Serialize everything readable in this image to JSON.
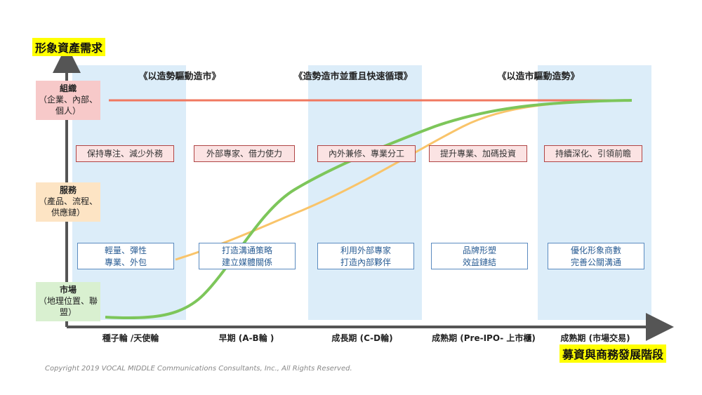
{
  "y_axis_title": "形象資產需求",
  "x_axis_title": "募資與商務發展階段",
  "phases": [
    "《以造勢驅動造市》",
    "《造勢造市並重且快速循環》",
    "《以造市驅動造勢》"
  ],
  "levels": {
    "org": {
      "title": "組織",
      "desc": "（企業、內部、個人）"
    },
    "service": {
      "title": "服務",
      "desc": "（產品、流程、供應鏈）"
    },
    "market": {
      "title": "市場",
      "desc": "（地理位置、聯盟）"
    }
  },
  "red_boxes": [
    "保持專注、減少外務",
    "外部專家、借力使力",
    "內外兼修、專業分工",
    "提升專業、加碼投資",
    "持續深化、引領前瞻"
  ],
  "blue_boxes": [
    {
      "line1": "輕量、彈性",
      "line2": "專業、外包"
    },
    {
      "line1": "打造溝通策略",
      "line2": "建立媒體關係"
    },
    {
      "line1": "利用外部專家",
      "line2": "打造內部夥伴"
    },
    {
      "line1": "品牌形塑",
      "line2": "效益鏈結"
    },
    {
      "line1": "優化形象商數",
      "line2": "完善公關溝通"
    }
  ],
  "stages": [
    "種子輪 /天使輪",
    "早期 (A-B輪 )",
    "成長期 (C-D輪)",
    "成熟期 (Pre-IPO- 上市櫃)",
    "成熟期 (市場交易)"
  ],
  "colors": {
    "band": "#dcedf9",
    "red_line": "#f07860",
    "orange_curve": "#f9c46a",
    "green_curve": "#7dc65a",
    "highlight": "#ffff00"
  },
  "copyright": "Copyright 2019 VOCAL MIDDLE Communications Consultants, Inc., All Rights Reserved."
}
